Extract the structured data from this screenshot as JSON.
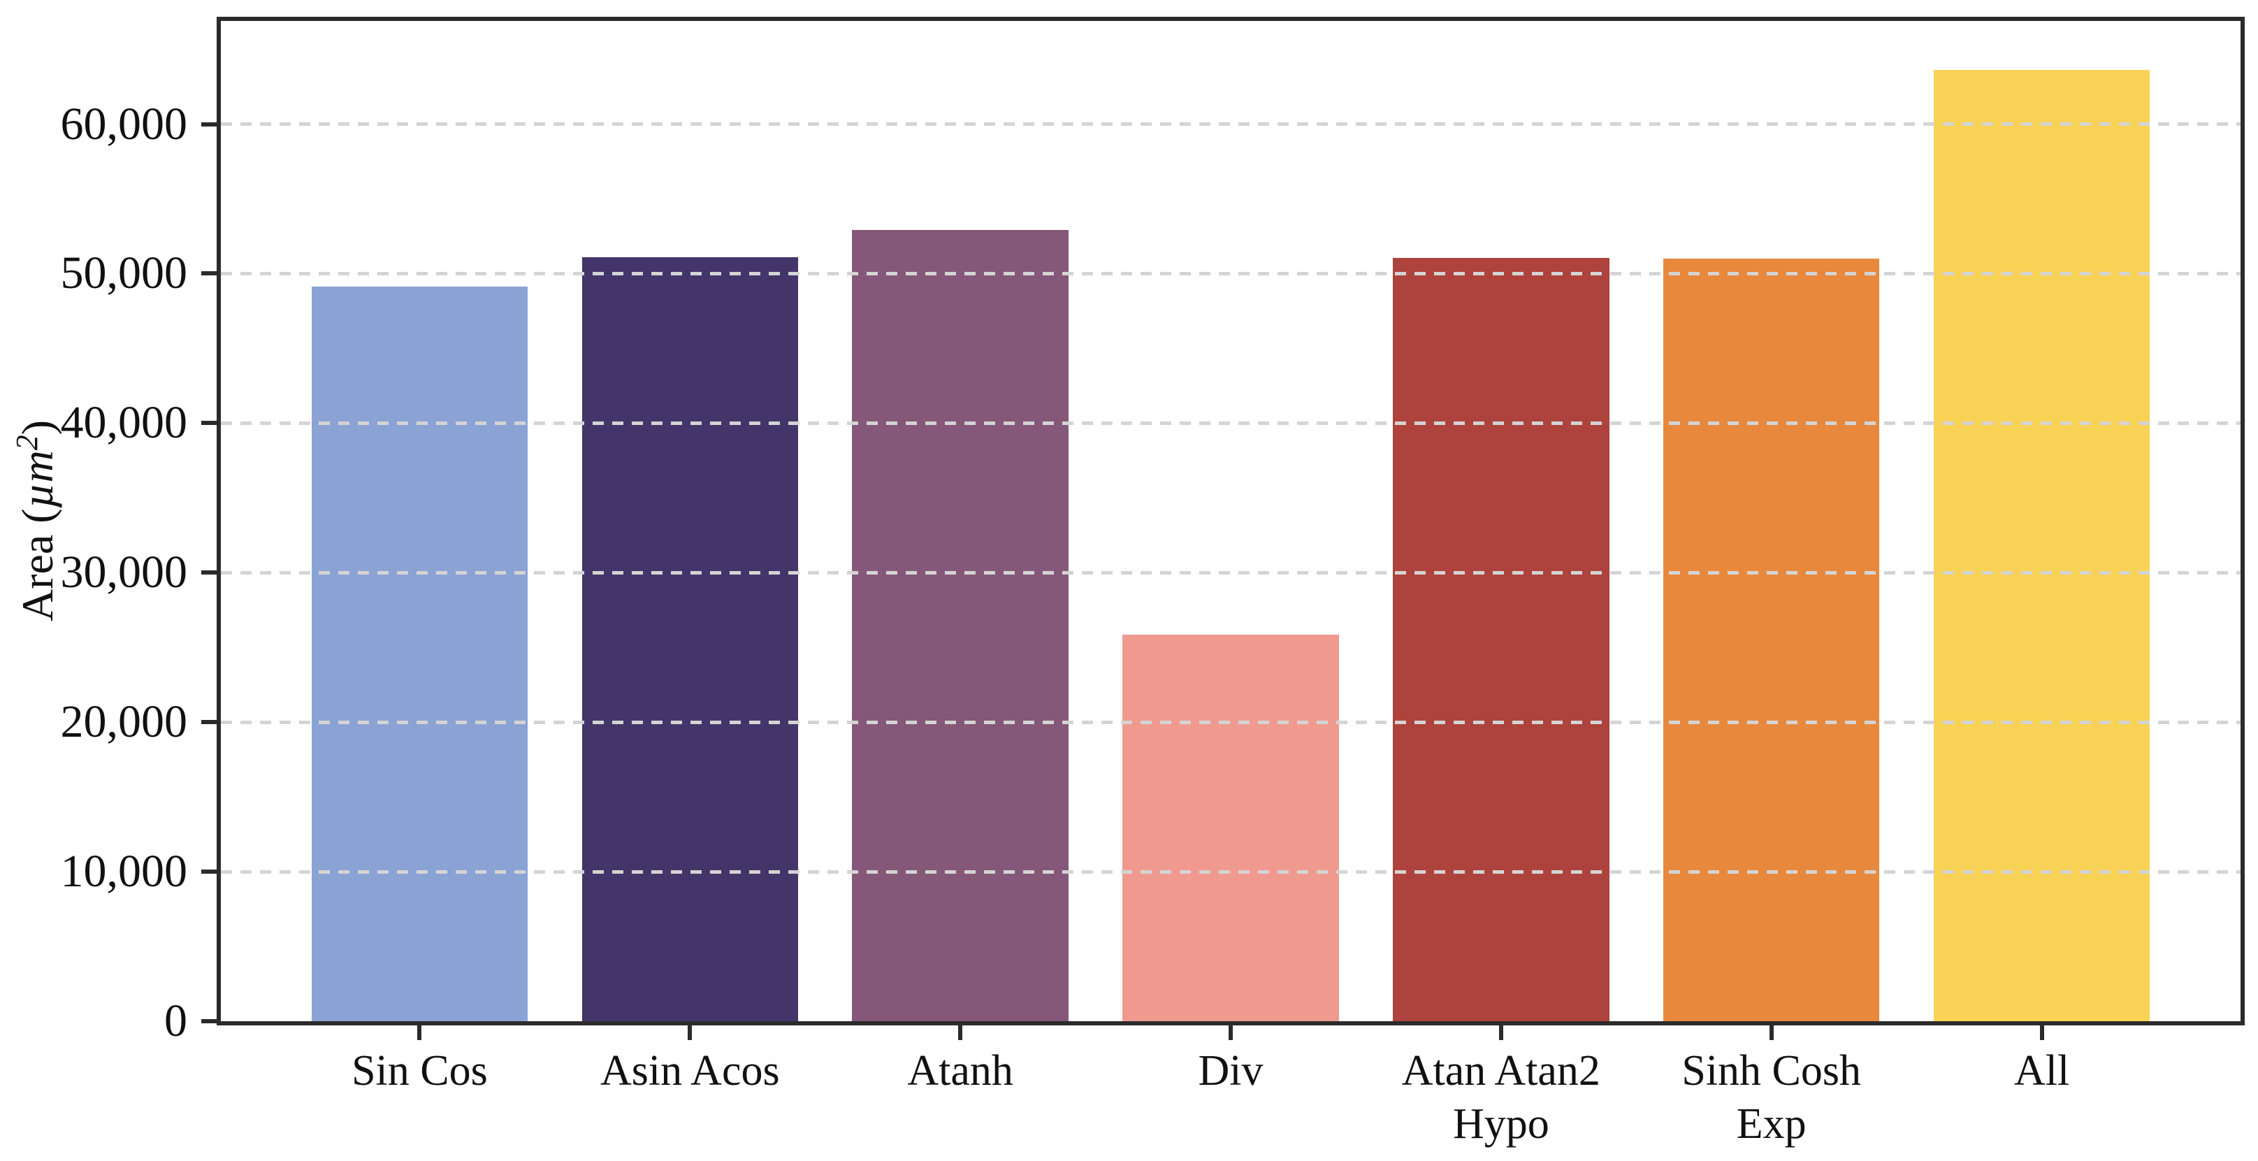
{
  "chart_data": {
    "type": "bar",
    "title": "",
    "xlabel": "",
    "ylabel": "Area (µm²)",
    "ylabel_parts": {
      "prefix": "Area (",
      "unit": "µm",
      "exponent": "2",
      "suffix": ")"
    },
    "categories": [
      "Sin Cos",
      "Asin Acos",
      "Atanh",
      "Div",
      "Atan Atan2 Hypo",
      "Sinh Cosh Exp",
      "All"
    ],
    "values": [
      49140,
      51090,
      52900,
      25850,
      51040,
      51010,
      63640
    ],
    "bars": [
      {
        "label_lines": [
          "Sin Cos"
        ],
        "value": 49140,
        "color": "#8BA2D4"
      },
      {
        "label_lines": [
          "Asin Acos"
        ],
        "value": 51090,
        "color": "#433569"
      },
      {
        "label_lines": [
          "Atanh"
        ],
        "value": 52900,
        "color": "#855778"
      },
      {
        "label_lines": [
          "Div"
        ],
        "value": 25850,
        "color": "#F0998F"
      },
      {
        "label_lines": [
          "Atan Atan2",
          "Hypo"
        ],
        "value": 51040,
        "color": "#AE423C"
      },
      {
        "label_lines": [
          "Sinh Cosh",
          "Exp"
        ],
        "value": 51010,
        "color": "#E8883D"
      },
      {
        "label_lines": [
          "All"
        ],
        "value": 63640,
        "color": "#F8D255"
      }
    ],
    "yticks": [
      {
        "value": 0,
        "label": "0"
      },
      {
        "value": 10000,
        "label": "10,000"
      },
      {
        "value": 20000,
        "label": "20,000"
      },
      {
        "value": 30000,
        "label": "30,000"
      },
      {
        "value": 40000,
        "label": "40,000"
      },
      {
        "value": 50000,
        "label": "50,000"
      },
      {
        "value": 60000,
        "label": "60,000"
      }
    ],
    "ylim": [
      0,
      66900
    ],
    "grid": {
      "visible": true,
      "axis": "y",
      "style": "dashed",
      "color": "#D4D4D4",
      "on_top_of_bars": true
    },
    "legend": null,
    "axis_color": "#2B2B2B",
    "background_color": "#FFFFFF"
  }
}
